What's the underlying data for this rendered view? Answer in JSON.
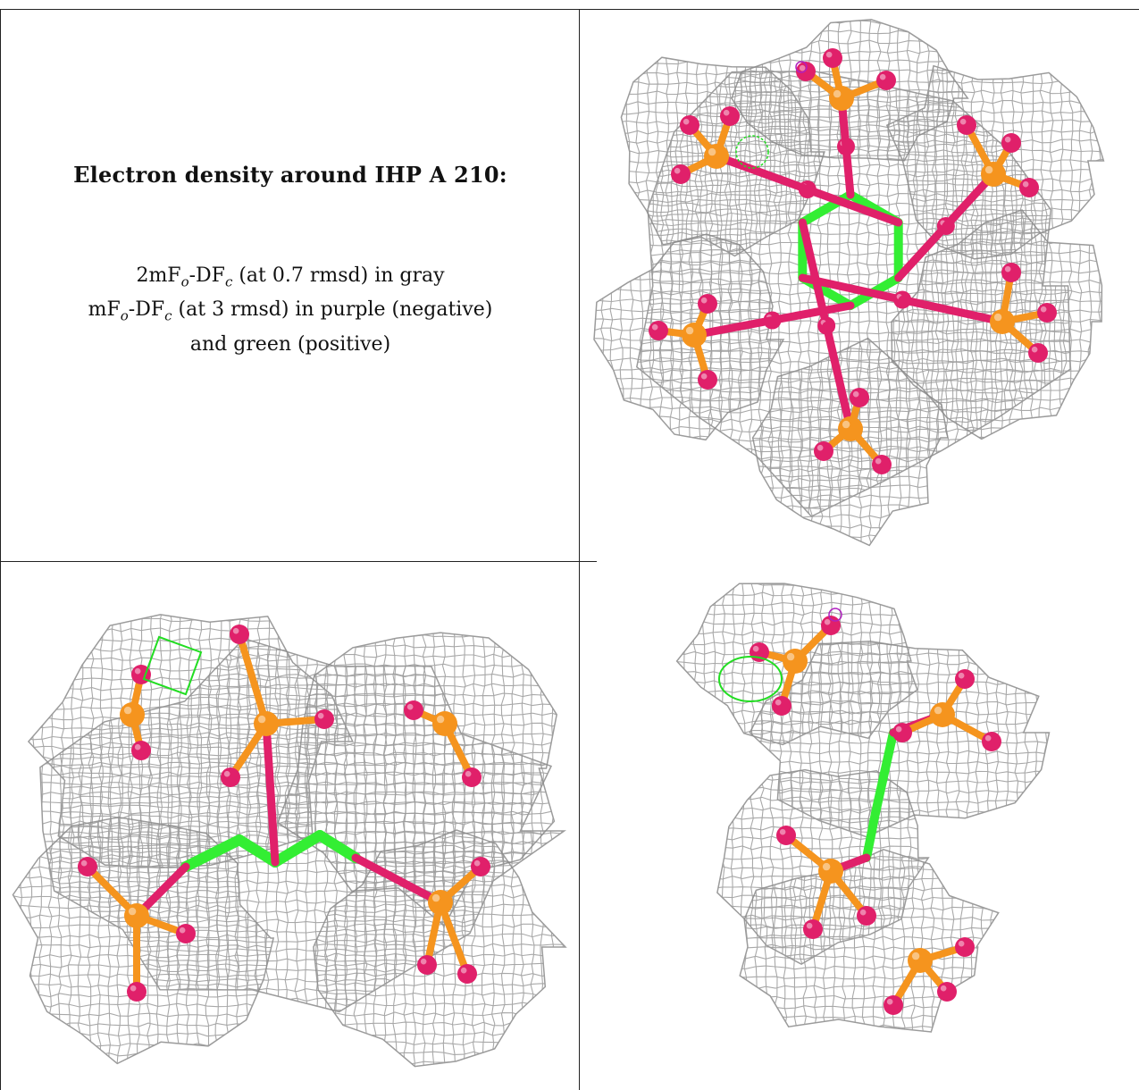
{
  "caption": {
    "title": "Electron density around IHP A 210:",
    "line1_prefix": "2mF",
    "line1_sub1": "o",
    "line1_mid": "-DF",
    "line1_sub2": "c",
    "line1_suffix": " (at 0.7 rmsd) in gray",
    "line2_prefix": "mF",
    "line2_sub1": "o",
    "line2_mid": "-DF",
    "line2_sub2": "c",
    "line2_suffix": " (at 3 rmsd) in purple (negative)",
    "line3": "and green (positive)"
  },
  "colors": {
    "mesh_gray": "#9a9a9a",
    "carbon_green": "#33ee33",
    "oxygen_magenta": "#e0206a",
    "phosphorus_orange": "#f5941e",
    "negative_purple": "#b020c0",
    "positive_green": "#22dd22"
  },
  "panels": [
    {
      "view": "top"
    },
    {
      "view": "side"
    },
    {
      "view": "edge"
    }
  ]
}
